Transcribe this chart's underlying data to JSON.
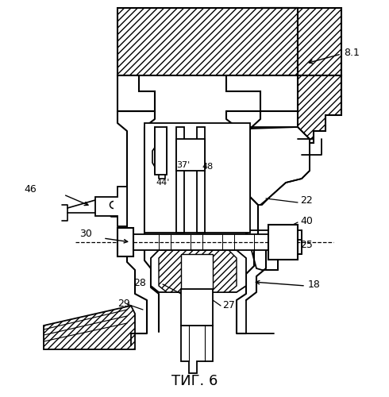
{
  "title": "ΤИГ. 6",
  "bg": "#ffffff",
  "lc": "#000000",
  "label_8_1": "8.1",
  "label_46": "46",
  "label_30": "30",
  "label_44p": "44'",
  "label_37p": "37'",
  "label_48": "48",
  "label_22": "22",
  "label_40": "40",
  "label_25": "25",
  "label_18": "18",
  "label_28": "28",
  "label_29": "29",
  "label_27": "27"
}
